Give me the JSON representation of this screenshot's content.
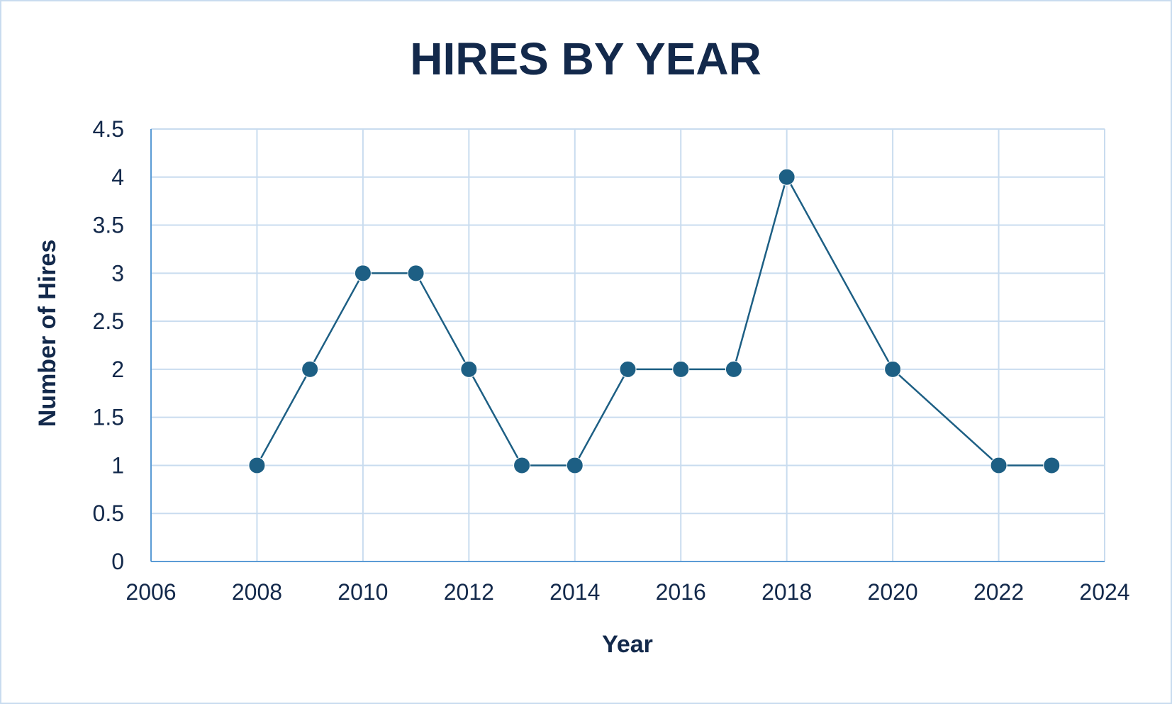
{
  "chart_data": {
    "type": "scatter",
    "title": "HIRES BY YEAR",
    "xlabel": "Year",
    "ylabel": "Number of Hires",
    "xlim": [
      2006,
      2024
    ],
    "ylim": [
      0,
      4.5
    ],
    "x_ticks": [
      "2006",
      "2008",
      "2010",
      "2012",
      "2014",
      "2016",
      "2018",
      "2020",
      "2022",
      "2024"
    ],
    "y_ticks": [
      "0",
      "0.5",
      "1",
      "1.5",
      "2",
      "2.5",
      "3",
      "3.5",
      "4",
      "4.5"
    ],
    "grid": true,
    "markers": true,
    "lines": true,
    "series": [
      {
        "x": [
          2008,
          2009,
          2010,
          2011,
          2012,
          2013,
          2014,
          2015,
          2016,
          2017,
          2018,
          2020,
          2022,
          2023
        ],
        "y": [
          1,
          2,
          3,
          3,
          2,
          1,
          1,
          2,
          2,
          2,
          4,
          2,
          1,
          1
        ]
      }
    ],
    "colors": {
      "series": "#1d5f84",
      "grid": "#c9dcef",
      "axis": "#5b9bd5",
      "title": "#13294b",
      "text": "#13294b"
    }
  }
}
